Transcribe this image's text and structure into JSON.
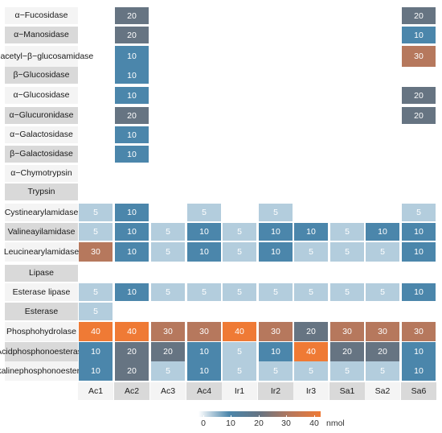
{
  "chart_data": {
    "type": "heatmap",
    "title": "",
    "xlabel": "",
    "ylabel": "",
    "rows": [
      "α−Fucosidase",
      "α−Manosidase",
      "N−acetyl−β−glucosamidase",
      "β−Glucosidase",
      "α−Glucosidase",
      "α−Glucuronidase",
      "α−Galactosidase",
      "β−Galactosidase",
      "α−Chymotrypsin",
      "Trypsin",
      "Cystine arylamidase",
      "Valine ayilamidase",
      "Leucine arylamidase",
      "Lipase",
      "Esterase lipase",
      "Esterase",
      "Phosphohydrolase",
      "Acid phosphonoesterase",
      "Alkaline phosphonoesterase"
    ],
    "row_label_lines": [
      [
        "α−Fucosidase"
      ],
      [
        "α−Manosidase"
      ],
      [
        "N−acetyl−β−",
        "glucosamidase"
      ],
      [
        "β−Glucosidase"
      ],
      [
        "α−Glucosidase"
      ],
      [
        "α−Glucuronidase"
      ],
      [
        "α−Galactosidase"
      ],
      [
        "β−Galactosidase"
      ],
      [
        "α−Chymotrypsin"
      ],
      [
        "Trypsin"
      ],
      [
        "Cystine",
        "arylamidase"
      ],
      [
        "Valine",
        "ayilamidase"
      ],
      [
        "Leucine",
        "arylamidase"
      ],
      [
        "Lipase"
      ],
      [
        "Esterase lipase"
      ],
      [
        "Esterase"
      ],
      [
        "Phosphohydrolase"
      ],
      [
        "Acid",
        "phosphonoesterase"
      ],
      [
        "Alkaline",
        "phosphonoesterase"
      ]
    ],
    "columns": [
      "Ac1",
      "Ac2",
      "Ac3",
      "Ac4",
      "Ir1",
      "Ir2",
      "Ir3",
      "Sa1",
      "Sa2",
      "Sa6"
    ],
    "values": [
      [
        null,
        20,
        null,
        null,
        null,
        null,
        null,
        null,
        null,
        20
      ],
      [
        null,
        20,
        null,
        null,
        null,
        null,
        null,
        null,
        null,
        10
      ],
      [
        null,
        10,
        null,
        null,
        null,
        null,
        null,
        null,
        null,
        30
      ],
      [
        null,
        10,
        null,
        null,
        null,
        null,
        null,
        null,
        null,
        null
      ],
      [
        null,
        10,
        null,
        null,
        null,
        null,
        null,
        null,
        null,
        20
      ],
      [
        null,
        20,
        null,
        null,
        null,
        null,
        null,
        null,
        null,
        20
      ],
      [
        null,
        10,
        null,
        null,
        null,
        null,
        null,
        null,
        null,
        null
      ],
      [
        null,
        10,
        null,
        null,
        null,
        null,
        null,
        null,
        null,
        null
      ],
      [
        null,
        null,
        null,
        null,
        null,
        null,
        null,
        null,
        null,
        null
      ],
      [
        null,
        null,
        null,
        null,
        null,
        null,
        null,
        null,
        null,
        null
      ],
      [
        5,
        10,
        null,
        5,
        null,
        5,
        null,
        null,
        null,
        5
      ],
      [
        5,
        10,
        5,
        10,
        5,
        10,
        10,
        5,
        10,
        10
      ],
      [
        30,
        10,
        5,
        10,
        5,
        10,
        5,
        5,
        5,
        10
      ],
      [
        null,
        null,
        null,
        null,
        null,
        null,
        null,
        null,
        null,
        null
      ],
      [
        5,
        10,
        5,
        5,
        5,
        5,
        5,
        5,
        5,
        10
      ],
      [
        5,
        null,
        null,
        null,
        null,
        null,
        null,
        null,
        null,
        null
      ],
      [
        40,
        40,
        30,
        30,
        40,
        30,
        20,
        30,
        30,
        30
      ],
      [
        10,
        20,
        20,
        10,
        5,
        10,
        40,
        20,
        20,
        10
      ],
      [
        10,
        20,
        5,
        10,
        5,
        5,
        5,
        5,
        5,
        10
      ]
    ],
    "colors": {
      "5": "#b3cddd",
      "10": "#4b86ab",
      "20": "#667482",
      "30": "#b6785d",
      "40": "#ef7a35"
    },
    "legend": {
      "ticks": [
        "0",
        "10",
        "20",
        "30",
        "40"
      ],
      "unit": "nmol",
      "range": [
        0,
        40
      ],
      "placement": "bottom"
    },
    "grid": false
  }
}
